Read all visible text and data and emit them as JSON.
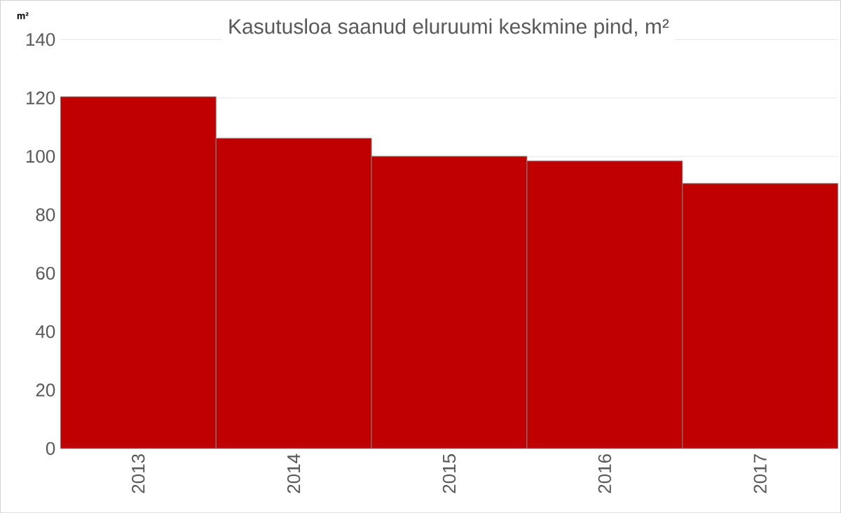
{
  "chart_data": {
    "type": "bar",
    "title": "Kasutusloa saanud eluruumi keskmine pind, m²",
    "ylabel": "m²",
    "categories": [
      "2013",
      "2014",
      "2015",
      "2016",
      "2017"
    ],
    "values": [
      120.4,
      106.2,
      100,
      98.4,
      90.7
    ],
    "color": "#c00000",
    "ylim": [
      0,
      140
    ],
    "yticks": [
      0,
      20,
      40,
      60,
      80,
      100,
      120,
      140
    ],
    "grid": "y"
  }
}
